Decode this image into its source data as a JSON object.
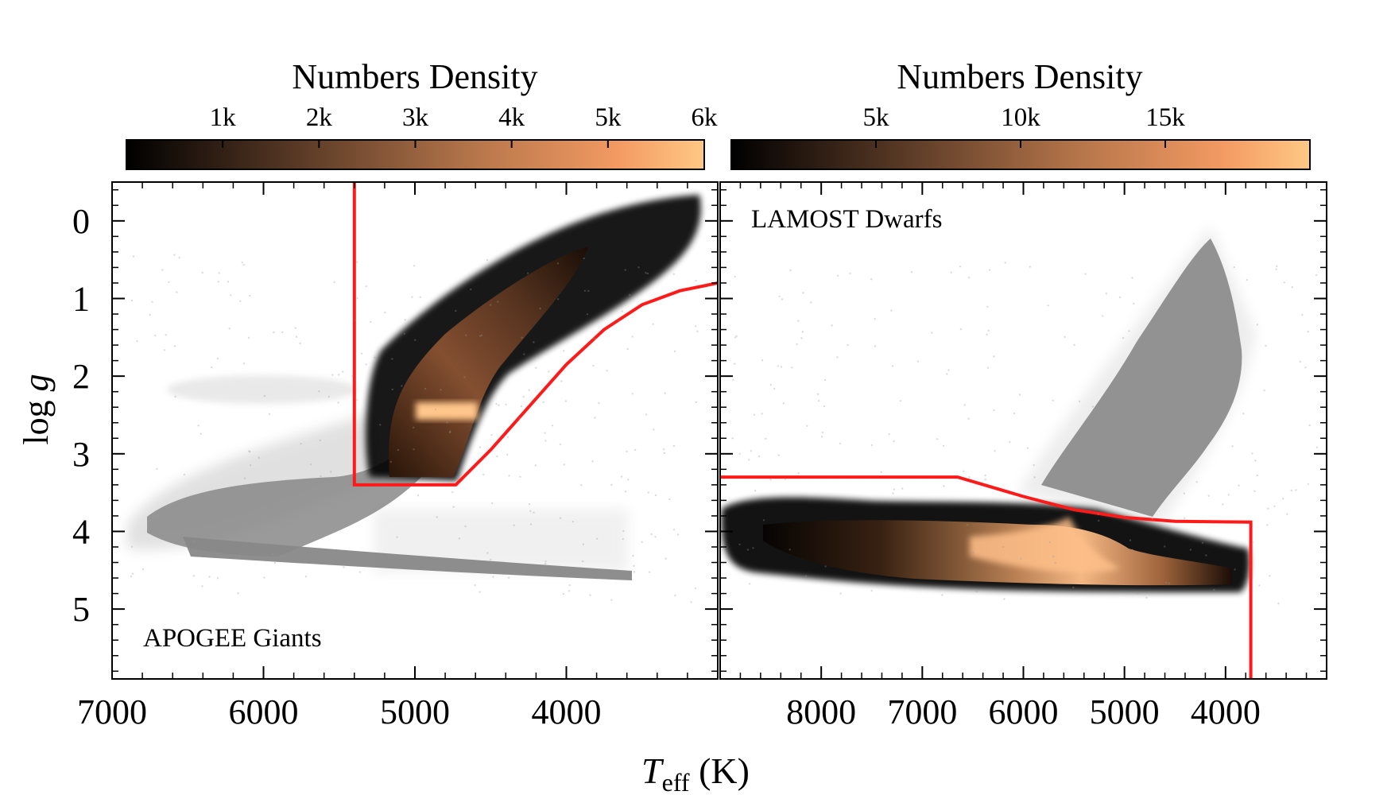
{
  "chart_data": [
    {
      "type": "scatter",
      "panel_label": "APOGEE Giants",
      "xlabel_main": "T",
      "xlabel_sub": "eff",
      "xlabel_unit": " (K)",
      "ylabel_main": "log ",
      "ylabel_var": "g",
      "xlim": [
        7000,
        3000
      ],
      "ylim": [
        5.9,
        -0.5
      ],
      "xticks": [
        7000,
        6000,
        5000,
        4000
      ],
      "xtick_labels": [
        "7000",
        "6000",
        "5000",
        "4000"
      ],
      "yticks": [
        0,
        1,
        2,
        3,
        4,
        5
      ],
      "ytick_labels": [
        "0",
        "1",
        "2",
        "3",
        "4",
        "5"
      ],
      "colorbar": {
        "title": "Numbers Density",
        "ticks": [
          1000,
          2000,
          3000,
          4000,
          5000,
          6000
        ],
        "tick_labels": [
          "1k",
          "2k",
          "3k",
          "4k",
          "5k",
          "6k"
        ],
        "range": [
          0,
          6000
        ],
        "colormap": [
          "#000000",
          "#5a3a26",
          "#b5754a",
          "#f39a62",
          "#ffc885"
        ]
      },
      "selection_boundary": {
        "color": "#ff1a1a",
        "points": [
          [
            5400,
            -0.5
          ],
          [
            5400,
            3.4
          ],
          [
            4730,
            3.4
          ],
          [
            4500,
            2.95
          ],
          [
            4250,
            2.4
          ],
          [
            4000,
            1.85
          ],
          [
            3750,
            1.4
          ],
          [
            3500,
            1.08
          ],
          [
            3250,
            0.9
          ],
          [
            3000,
            0.8
          ]
        ]
      },
      "gray_population": "all stars (gray background)",
      "density_population": "selected giants (colored density)"
    },
    {
      "type": "scatter",
      "panel_label": "LAMOST Dwarfs",
      "xlim": [
        9000,
        3000
      ],
      "ylim": [
        5.9,
        -0.5
      ],
      "xticks": [
        8000,
        7000,
        6000,
        5000,
        4000
      ],
      "xtick_labels": [
        "8000",
        "7000",
        "6000",
        "5000",
        "4000"
      ],
      "yticks": [
        0,
        1,
        2,
        3,
        4,
        5
      ],
      "colorbar": {
        "title": "Numbers Density",
        "ticks": [
          5000,
          10000,
          15000
        ],
        "tick_labels": [
          "5k",
          "10k",
          "15k"
        ],
        "range": [
          0,
          20000
        ],
        "colormap": [
          "#000000",
          "#5a3a26",
          "#b5754a",
          "#f39a62",
          "#ffc885"
        ]
      },
      "selection_boundary": {
        "color": "#ff1a1a",
        "points": [
          [
            9000,
            3.3
          ],
          [
            6650,
            3.3
          ],
          [
            6000,
            3.55
          ],
          [
            5500,
            3.72
          ],
          [
            5000,
            3.82
          ],
          [
            4500,
            3.87
          ],
          [
            3750,
            3.88
          ],
          [
            3750,
            5.9
          ]
        ]
      },
      "gray_population": "all stars (gray background)",
      "density_population": "selected dwarfs (colored density)"
    }
  ]
}
